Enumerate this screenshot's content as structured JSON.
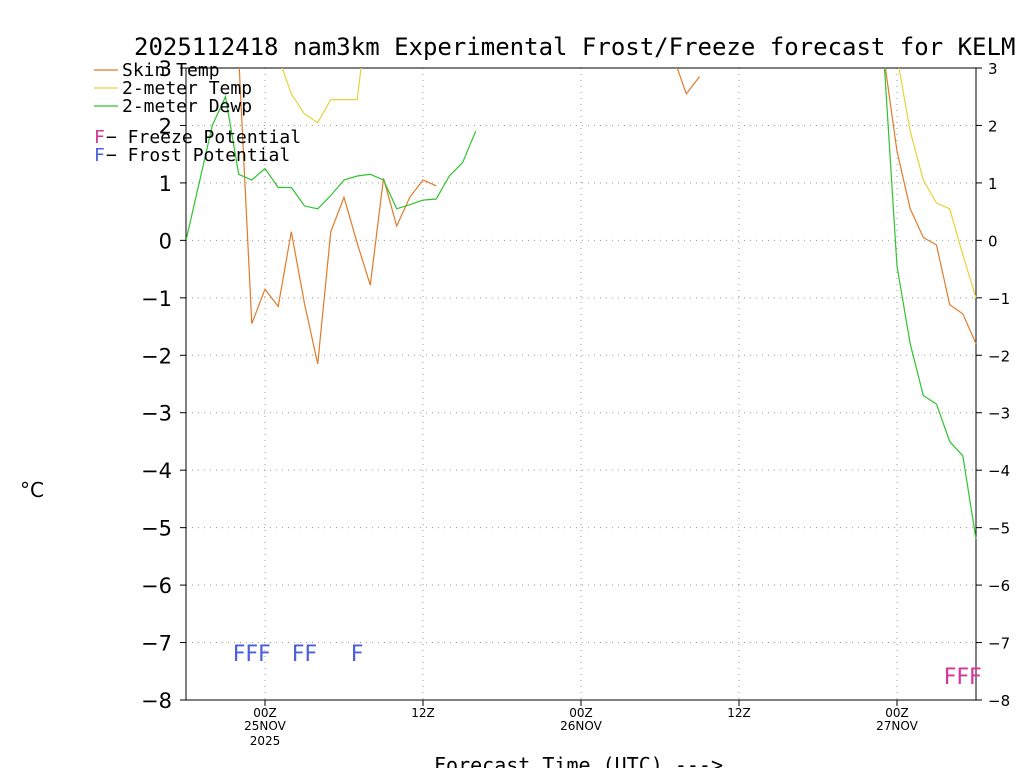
{
  "chart_data": {
    "type": "line",
    "title": "2025112418 nam3km Experimental Frost/Freeze forecast for KELM",
    "xlabel": "Forecast Time (UTC) --->",
    "ylabel": "°C",
    "ylim": [
      -8,
      3
    ],
    "xlim": [
      -6,
      54
    ],
    "grid": true,
    "yticks": [
      3,
      2,
      1,
      0,
      -1,
      -2,
      -3,
      -4,
      -5,
      -6,
      -7,
      -8
    ],
    "ytick_labels": [
      "3",
      "2",
      "1",
      "0",
      "−1",
      "−2",
      "−3",
      "−4",
      "−5",
      "−6",
      "−7",
      "−8"
    ],
    "xticks": [
      {
        "hour": 0,
        "label": "00Z",
        "sub1": "25NOV",
        "sub2": "2025"
      },
      {
        "hour": 12,
        "label": "12Z",
        "sub1": "",
        "sub2": ""
      },
      {
        "hour": 24,
        "label": "00Z",
        "sub1": "26NOV",
        "sub2": ""
      },
      {
        "hour": 36,
        "label": "12Z",
        "sub1": "",
        "sub2": ""
      },
      {
        "hour": 48,
        "label": "00Z",
        "sub1": "27NOV",
        "sub2": ""
      }
    ],
    "series": [
      {
        "name": "Skin Temp",
        "color": "#e07b2a",
        "x": [
          -2,
          -1,
          0,
          1,
          2,
          3,
          4,
          5,
          6,
          7,
          8,
          9,
          10,
          11,
          12,
          13,
          31,
          32,
          33,
          47,
          48,
          49,
          50,
          51,
          52,
          53,
          54
        ],
        "values": [
          3.2,
          -1.45,
          -0.85,
          -1.15,
          0.15,
          -1.1,
          -2.15,
          0.15,
          0.75,
          -0.05,
          -0.78,
          1.08,
          0.25,
          0.75,
          1.05,
          0.95,
          3.2,
          2.55,
          2.85,
          3.2,
          1.55,
          0.55,
          0.05,
          -0.08,
          -1.12,
          -1.28,
          -1.8
        ]
      },
      {
        "name": "2-meter Temp",
        "color": "#e8d23a",
        "x": [
          1,
          2,
          3,
          4,
          5,
          6,
          7,
          7.4,
          48,
          49,
          50,
          51,
          52,
          53,
          54
        ],
        "values": [
          3.2,
          2.55,
          2.2,
          2.05,
          2.45,
          2.45,
          2.45,
          3.2,
          3.2,
          1.9,
          1.05,
          0.65,
          0.55,
          -0.25,
          -1.0
        ]
      },
      {
        "name": "2-meter Dewp",
        "color": "#2ec42e",
        "x": [
          -6,
          -5,
          -4,
          -3,
          -2,
          -1,
          0,
          1,
          2,
          3,
          4,
          5,
          6,
          7,
          8,
          9,
          10,
          11,
          12,
          13,
          14,
          15,
          16,
          47,
          48,
          49,
          50,
          51,
          52,
          53,
          54
        ],
        "values": [
          0.0,
          1.0,
          2.0,
          2.5,
          1.15,
          1.05,
          1.25,
          0.92,
          0.92,
          0.6,
          0.55,
          0.78,
          1.05,
          1.12,
          1.15,
          1.05,
          0.55,
          0.62,
          0.7,
          0.72,
          1.12,
          1.35,
          1.9,
          3.2,
          -0.45,
          -1.8,
          -2.7,
          -2.85,
          -3.5,
          -3.75,
          -5.2
        ]
      }
    ],
    "legend": {
      "position": "top-left",
      "entries": [
        "Skin Temp",
        "2-meter Temp",
        "2-meter Dewp"
      ],
      "notes": [
        {
          "letter": "F",
          "text": " − Freeze Potential",
          "color": "#d6339c"
        },
        {
          "letter": "F",
          "text": " − Frost Potential",
          "color": "#4a5fd9"
        }
      ]
    },
    "markers": [
      {
        "hour": -1,
        "y": -7.15,
        "text": "FFF",
        "kind": "frost",
        "color": "#4a5fd9"
      },
      {
        "hour": 3,
        "y": -7.15,
        "text": "FF",
        "kind": "frost",
        "color": "#4a5fd9"
      },
      {
        "hour": 7,
        "y": -7.15,
        "text": "F",
        "kind": "frost",
        "color": "#4a5fd9"
      },
      {
        "hour": 53,
        "y": -7.55,
        "text": "FFF",
        "kind": "freeze",
        "color": "#d6339c"
      }
    ]
  }
}
